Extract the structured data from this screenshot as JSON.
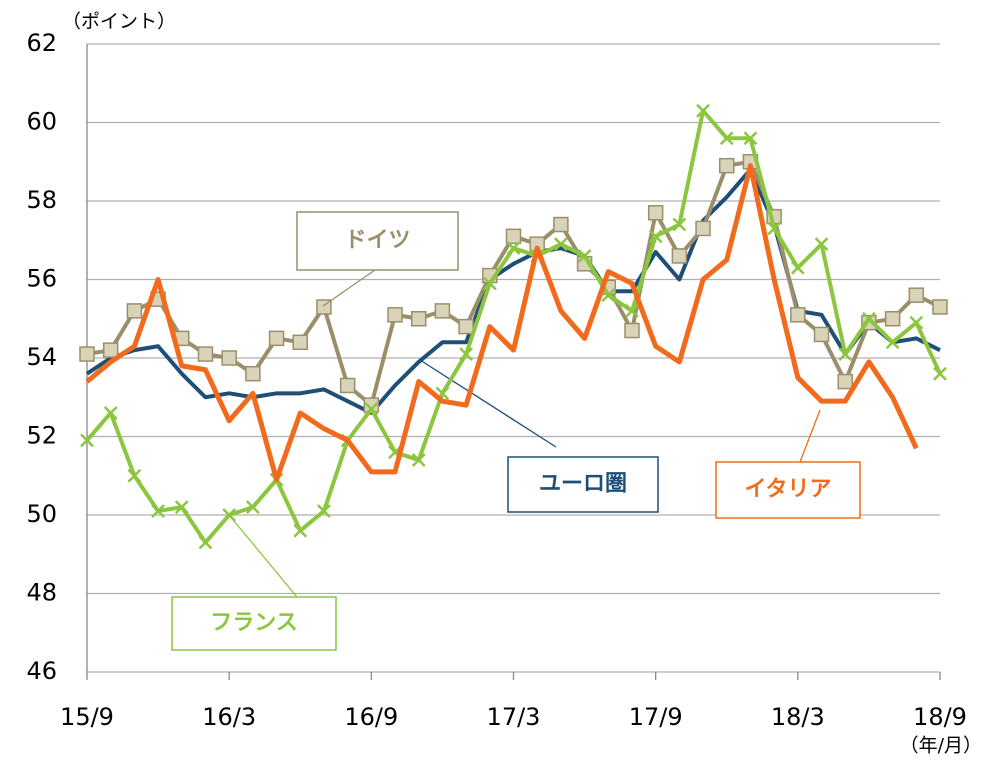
{
  "chart_data": {
    "type": "line",
    "y_unit": "（ポイント）",
    "x_unit": "（年/月）",
    "categories": [
      "15/9",
      null,
      null,
      null,
      null,
      null,
      "16/3",
      null,
      null,
      null,
      null,
      null,
      "16/9",
      null,
      null,
      null,
      null,
      null,
      "17/3",
      null,
      null,
      null,
      null,
      null,
      "17/9",
      null,
      null,
      null,
      null,
      null,
      "18/3",
      null,
      null,
      null,
      null,
      null,
      "18/9"
    ],
    "ylim": [
      46,
      62
    ],
    "yticks": [
      46,
      48,
      50,
      52,
      54,
      56,
      58,
      60,
      62
    ],
    "grid": true,
    "series": [
      {
        "name": "ユーロ圏",
        "color": "#1f4e79",
        "marker": "none",
        "values": [
          53.6,
          54.0,
          54.2,
          54.3,
          53.6,
          53.0,
          53.1,
          53.0,
          53.1,
          53.1,
          53.2,
          52.9,
          52.6,
          53.3,
          53.9,
          54.4,
          54.4,
          56.0,
          56.4,
          56.7,
          56.8,
          56.6,
          55.7,
          55.7,
          56.7,
          56.0,
          57.5,
          58.1,
          58.8,
          57.4,
          55.2,
          55.1,
          54.1,
          54.9,
          54.4,
          54.5,
          54.2
        ]
      },
      {
        "name": "ドイツ",
        "color": "#9a8f6a",
        "marker": "square",
        "values": [
          54.1,
          54.2,
          55.2,
          55.5,
          54.5,
          54.1,
          54.0,
          53.6,
          54.5,
          54.4,
          55.3,
          53.3,
          52.8,
          55.1,
          55.0,
          55.2,
          54.8,
          56.1,
          57.1,
          56.9,
          57.4,
          56.4,
          55.8,
          54.7,
          57.7,
          56.6,
          57.3,
          58.9,
          59.0,
          57.6,
          55.1,
          54.6,
          53.4,
          54.9,
          55.0,
          55.6,
          55.3
        ]
      },
      {
        "name": "フランス",
        "color": "#8cc63f",
        "marker": "x",
        "values": [
          51.9,
          52.6,
          51.0,
          50.1,
          50.2,
          49.3,
          50.0,
          50.2,
          50.9,
          49.6,
          50.1,
          51.9,
          52.7,
          51.6,
          51.4,
          53.1,
          54.1,
          55.9,
          56.8,
          56.6,
          56.9,
          56.6,
          55.6,
          55.2,
          57.1,
          57.4,
          60.3,
          59.6,
          59.6,
          57.3,
          56.3,
          56.9,
          54.1,
          55.0,
          54.4,
          54.9,
          53.6
        ]
      },
      {
        "name": "イタリア",
        "color": "#f26b1d",
        "marker": "none",
        "values": [
          53.4,
          53.9,
          54.3,
          56.0,
          53.8,
          53.7,
          52.4,
          53.1,
          50.9,
          52.6,
          52.2,
          51.9,
          51.1,
          51.1,
          53.4,
          52.9,
          52.8,
          54.8,
          54.2,
          56.8,
          55.2,
          54.5,
          56.2,
          55.9,
          54.3,
          53.9,
          56.0,
          56.5,
          58.9,
          56.0,
          53.5,
          52.9,
          52.9,
          53.9,
          53.0,
          51.7,
          null
        ]
      }
    ]
  }
}
